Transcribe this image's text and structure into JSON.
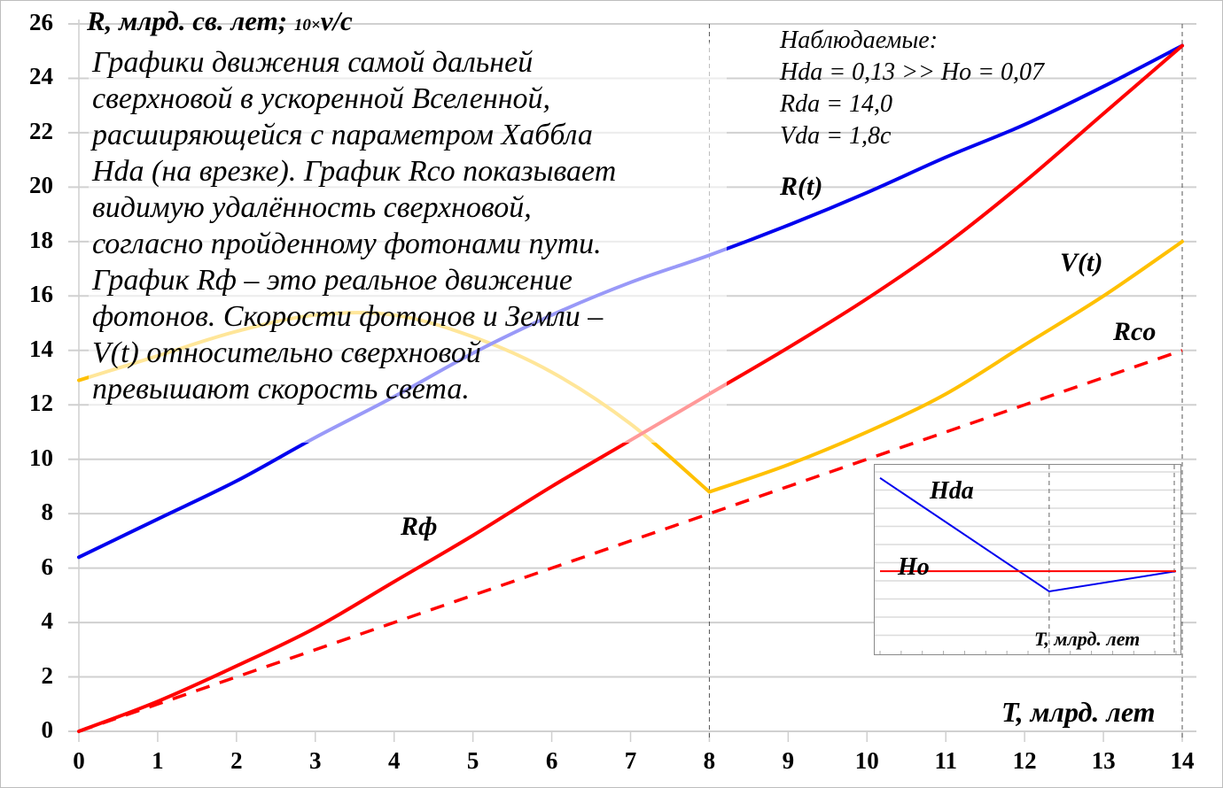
{
  "chart_data": {
    "type": "line",
    "title": "",
    "xlabel": "T, млрд. лет",
    "ylabel": "R, млрд. св. лет; 10×v/c",
    "xlim": [
      0,
      14
    ],
    "ylim": [
      0,
      26
    ],
    "x_ticks": [
      "0",
      "1",
      "2",
      "3",
      "4",
      "5",
      "6",
      "7",
      "8",
      "9",
      "10",
      "11",
      "12",
      "13",
      "14"
    ],
    "y_ticks": [
      "0",
      "2",
      "4",
      "6",
      "8",
      "10",
      "12",
      "14",
      "16",
      "18",
      "20",
      "22",
      "24",
      "26"
    ],
    "grid": "horizontal",
    "vertical_markers": [
      8,
      14
    ],
    "x": [
      0,
      1,
      2,
      3,
      4,
      5,
      6,
      7,
      8,
      9,
      10,
      11,
      12,
      13,
      14
    ],
    "series": [
      {
        "name": "R(t)",
        "color": "#0000ee",
        "style": "solid",
        "values": [
          6.4,
          7.8,
          9.2,
          10.8,
          12.3,
          13.9,
          15.3,
          16.5,
          17.5,
          18.6,
          19.8,
          21.1,
          22.3,
          23.7,
          25.2
        ]
      },
      {
        "name": "Rф",
        "color": "#ff0000",
        "style": "solid",
        "values": [
          0,
          1.1,
          2.4,
          3.8,
          5.5,
          7.2,
          9.0,
          10.7,
          12.4,
          14.1,
          15.9,
          17.9,
          20.2,
          22.7,
          25.2
        ]
      },
      {
        "name": "Rco",
        "color": "#ff0000",
        "style": "dashed",
        "values": [
          0,
          1,
          2,
          3,
          4,
          5,
          6,
          7,
          8,
          9,
          10,
          11,
          12,
          13,
          14
        ]
      },
      {
        "name": "V(t)",
        "color": "#ffc000",
        "style": "solid",
        "values": [
          12.9,
          13.8,
          14.7,
          15.3,
          15.3,
          14.5,
          13.2,
          11.3,
          8.8,
          9.8,
          11.0,
          12.4,
          14.2,
          16.0,
          18.0
        ]
      }
    ],
    "annotations": {
      "description": [
        "Графики движения самой дальней",
        "сверхновой в ускоренной Вселенной,",
        "расширяющейся с параметром Хаббла",
        "Hda (на врезке). График  Rco  показывает",
        "видимую удалённость сверхновой,",
        "согласно пройденному фотонами пути.",
        "График   Rф  – это реальное движение",
        "фотонов. Скорости фотонов и Земли –",
        "V(t) относительно сверхновой",
        "превышают скорость света."
      ],
      "observed": [
        "Наблюдаемые:",
        "Hda = 0,13 >> Ho = 0,07",
        "Rda = 14,0",
        "Vda = 1,8c"
      ]
    },
    "inset": {
      "xlabel": "T, млрд. лет",
      "series": [
        {
          "name": "Hda",
          "color": "#0000ee",
          "points": [
            [
              0,
              0.13
            ],
            [
              8,
              0.057
            ],
            [
              14,
              0.07
            ]
          ]
        },
        {
          "name": "Ho",
          "color": "#ff0000",
          "points": [
            [
              0,
              0.07
            ],
            [
              14,
              0.07
            ]
          ]
        }
      ]
    }
  },
  "labels": {
    "y_axis_title_main": "R, млрд. св. лет;",
    "y_axis_title_factor": "10×",
    "y_axis_title_unit": "v/c",
    "x_axis_title": "T, млрд. лет",
    "series_R": "R(t)",
    "series_Rf": "Rф",
    "series_Rco": "Rco",
    "series_V": "V(t)",
    "inset_Hda": "Hda",
    "inset_Ho": "Ho",
    "inset_xlabel": "T, млрд. лет"
  }
}
